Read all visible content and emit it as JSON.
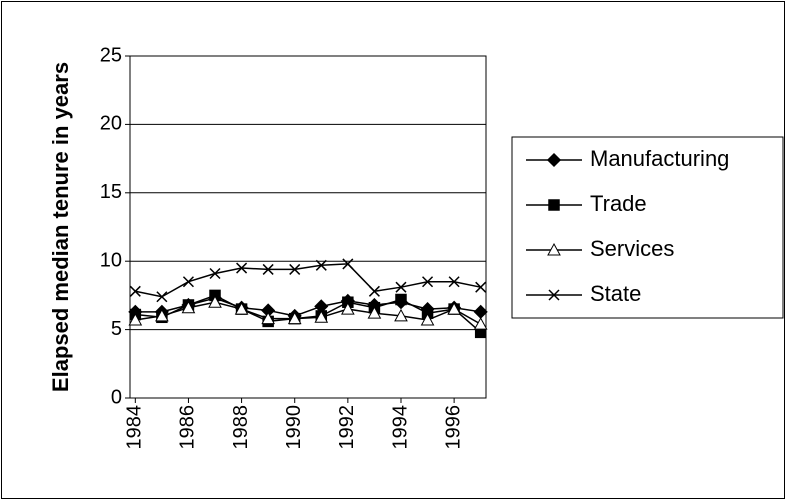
{
  "chart_data": {
    "type": "line",
    "y_label": "Elapsed median tenure in years",
    "x": [
      1984,
      1985,
      1986,
      1987,
      1988,
      1989,
      1990,
      1991,
      1992,
      1993,
      1994,
      1995,
      1996,
      1997
    ],
    "xlim": [
      1983.8,
      1997.2
    ],
    "xticks": [
      1984,
      1986,
      1988,
      1990,
      1992,
      1994,
      1996
    ],
    "ylim": [
      0,
      25
    ],
    "yticks": [
      0,
      5,
      10,
      15,
      20,
      25
    ],
    "grid": true,
    "legend": "right",
    "series": [
      {
        "name": "Manufacturing",
        "color": "#000000",
        "marker": "diamond",
        "values": [
          6.3,
          6.3,
          6.8,
          7.3,
          6.6,
          6.4,
          6.0,
          6.7,
          7.1,
          6.8,
          7.0,
          6.5,
          6.6,
          6.3
        ]
      },
      {
        "name": "Trade",
        "color": "#000000",
        "marker": "square",
        "values": [
          6.1,
          5.9,
          6.8,
          7.5,
          6.5,
          5.6,
          5.8,
          6.0,
          7.0,
          6.6,
          7.2,
          6.2,
          6.5,
          4.8
        ]
      },
      {
        "name": "Services",
        "color": "#000000",
        "marker": "triangle",
        "values": [
          5.7,
          6.0,
          6.6,
          7.0,
          6.5,
          5.8,
          5.8,
          5.9,
          6.5,
          6.2,
          6.0,
          5.7,
          6.5,
          5.4
        ]
      },
      {
        "name": "State",
        "color": "#000000",
        "marker": "cross",
        "values": [
          7.8,
          7.4,
          8.5,
          9.1,
          9.5,
          9.4,
          9.4,
          9.7,
          9.8,
          7.8,
          8.1,
          8.5,
          8.5,
          8.1
        ]
      }
    ]
  }
}
